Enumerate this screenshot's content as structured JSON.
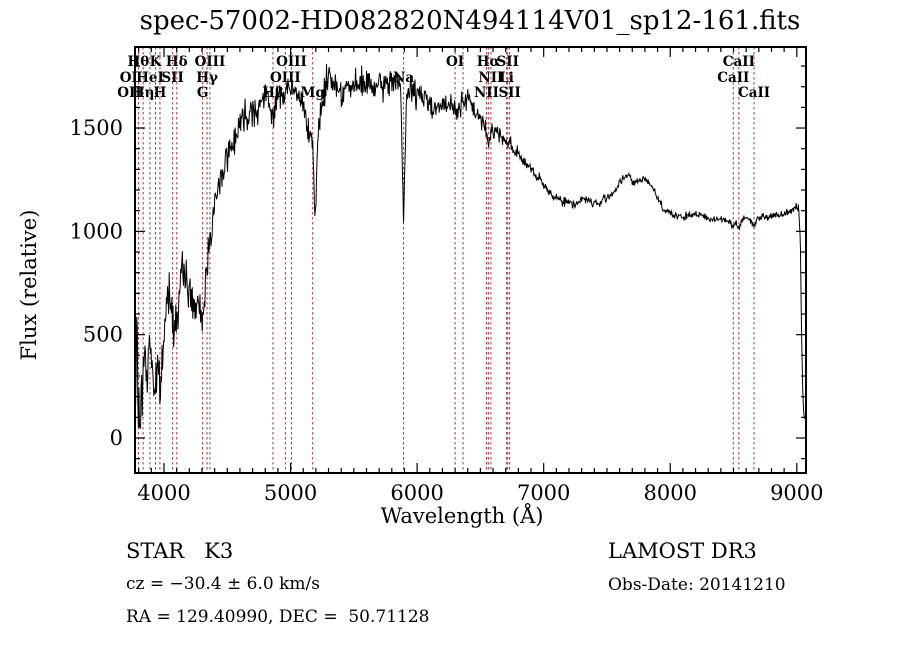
{
  "title": "spec-57002-HD082820N494114V01_sp12-161.fits",
  "annotations": {
    "object_class": "STAR   K3",
    "survey_release": "LAMOST DR3",
    "radial_velocity": "cz = −30.4 ± 6.0 km/s",
    "obs_date": "Obs-Date: 20141210",
    "coordinates": "RA = 129.40990, DEC =  50.71128"
  },
  "chart_data": {
    "type": "line",
    "title": "spec-57002-HD082820N494114V01_sp12-161.fits",
    "xlabel": "Wavelength (Å)",
    "ylabel": "Flux (relative)",
    "xlim": [
      3771,
      9075
    ],
    "ylim": [
      -169,
      1892
    ],
    "x_major_ticks": [
      4000,
      5000,
      6000,
      7000,
      8000,
      9000
    ],
    "x_minor_step": 100,
    "y_major_ticks": [
      0,
      500,
      1000,
      1500
    ],
    "y_minor_step": 100,
    "grid": false,
    "legend": false,
    "axis_color": "#000000",
    "spectrum_color": "#000000",
    "line_marker_color": "#a03939",
    "spectral_lines": [
      {
        "label": "Hθ",
        "wavelength": 3798,
        "row": 1
      },
      {
        "label": "K",
        "wavelength": 3933,
        "row": 1
      },
      {
        "label": "Hδ",
        "wavelength": 4101,
        "row": 1
      },
      {
        "label": "OIII",
        "wavelength": 4363,
        "row": 1
      },
      {
        "label": "OIII",
        "wavelength": 5007,
        "row": 1
      },
      {
        "label": "OI",
        "wavelength": 6300,
        "row": 1
      },
      {
        "label": "",
        "wavelength": 6363,
        "row": 1
      },
      {
        "label": "Hα",
        "wavelength": 6563,
        "row": 1
      },
      {
        "label": "SII",
        "wavelength": 6716,
        "row": 1
      },
      {
        "label": "CaII",
        "wavelength": 8542,
        "row": 1
      },
      {
        "label": "OI",
        "wavelength": 3722,
        "row": 2
      },
      {
        "label": "HeI",
        "wavelength": 3889,
        "row": 2
      },
      {
        "label": "SII",
        "wavelength": 4068,
        "row": 2
      },
      {
        "label": "Hγ",
        "wavelength": 4340,
        "row": 2
      },
      {
        "label": "OIII",
        "wavelength": 4959,
        "row": 2
      },
      {
        "label": "Na",
        "wavelength": 5893,
        "row": 2
      },
      {
        "label": "NII",
        "wavelength": 6583,
        "row": 2
      },
      {
        "label": "Li",
        "wavelength": 6707,
        "row": 2
      },
      {
        "label": "CaII",
        "wavelength": 8498,
        "row": 2
      },
      {
        "label": "OII",
        "wavelength": 3727,
        "row": 3
      },
      {
        "label": "Hη",
        "wavelength": 3835,
        "row": 3
      },
      {
        "label": "H",
        "wavelength": 3968,
        "row": 3
      },
      {
        "label": "G",
        "wavelength": 4305,
        "row": 3
      },
      {
        "label": "Hβ",
        "wavelength": 4861,
        "row": 3
      },
      {
        "label": "Mg",
        "wavelength": 5175,
        "row": 3
      },
      {
        "label": "NII",
        "wavelength": 6548,
        "row": 3
      },
      {
        "label": "SII",
        "wavelength": 6731,
        "row": 3
      },
      {
        "label": "CaII",
        "wavelength": 8662,
        "row": 3
      }
    ],
    "series": [
      {
        "name": "spectrum",
        "description": "LAMOST stellar spectrum, flux (relative) vs wavelength (Å); jagged noisy trace approximated by envelope anchor points plus per-segment noise amplitude",
        "envelope_points": [
          [
            3771,
            80
          ],
          [
            3780,
            250
          ],
          [
            3787,
            720
          ],
          [
            3792,
            200
          ],
          [
            3800,
            120
          ],
          [
            3810,
            90
          ],
          [
            3820,
            150
          ],
          [
            3832,
            280
          ],
          [
            3845,
            430
          ],
          [
            3855,
            380
          ],
          [
            3865,
            300
          ],
          [
            3875,
            350
          ],
          [
            3888,
            520
          ],
          [
            3900,
            400
          ],
          [
            3915,
            280
          ],
          [
            3933,
            220
          ],
          [
            3948,
            330
          ],
          [
            3968,
            240
          ],
          [
            3985,
            350
          ],
          [
            4000,
            480
          ],
          [
            4020,
            640
          ],
          [
            4040,
            740
          ],
          [
            4060,
            640
          ],
          [
            4080,
            580
          ],
          [
            4101,
            560
          ],
          [
            4120,
            680
          ],
          [
            4140,
            780
          ],
          [
            4160,
            820
          ],
          [
            4180,
            760
          ],
          [
            4200,
            700
          ],
          [
            4220,
            660
          ],
          [
            4240,
            640
          ],
          [
            4260,
            620
          ],
          [
            4280,
            610
          ],
          [
            4305,
            570
          ],
          [
            4320,
            700
          ],
          [
            4340,
            830
          ],
          [
            4360,
            980
          ],
          [
            4380,
            1060
          ],
          [
            4400,
            1120
          ],
          [
            4430,
            1200
          ],
          [
            4460,
            1290
          ],
          [
            4490,
            1360
          ],
          [
            4520,
            1390
          ],
          [
            4550,
            1440
          ],
          [
            4580,
            1500
          ],
          [
            4610,
            1540
          ],
          [
            4640,
            1560
          ],
          [
            4670,
            1580
          ],
          [
            4700,
            1600
          ],
          [
            4730,
            1590
          ],
          [
            4760,
            1620
          ],
          [
            4790,
            1640
          ],
          [
            4820,
            1650
          ],
          [
            4861,
            1560
          ],
          [
            4900,
            1650
          ],
          [
            4940,
            1670
          ],
          [
            4980,
            1690
          ],
          [
            5020,
            1680
          ],
          [
            5060,
            1650
          ],
          [
            5100,
            1620
          ],
          [
            5140,
            1520
          ],
          [
            5175,
            1380
          ],
          [
            5195,
            1020
          ],
          [
            5215,
            1450
          ],
          [
            5240,
            1600
          ],
          [
            5270,
            1680
          ],
          [
            5300,
            1760
          ],
          [
            5330,
            1740
          ],
          [
            5360,
            1700
          ],
          [
            5400,
            1680
          ],
          [
            5440,
            1700
          ],
          [
            5480,
            1690
          ],
          [
            5520,
            1700
          ],
          [
            5560,
            1710
          ],
          [
            5600,
            1720
          ],
          [
            5640,
            1700
          ],
          [
            5680,
            1690
          ],
          [
            5720,
            1700
          ],
          [
            5760,
            1710
          ],
          [
            5800,
            1730
          ],
          [
            5840,
            1750
          ],
          [
            5870,
            1700
          ],
          [
            5893,
            1000
          ],
          [
            5915,
            1650
          ],
          [
            5950,
            1690
          ],
          [
            5990,
            1670
          ],
          [
            6030,
            1650
          ],
          [
            6070,
            1640
          ],
          [
            6110,
            1620
          ],
          [
            6150,
            1600
          ],
          [
            6190,
            1610
          ],
          [
            6230,
            1600
          ],
          [
            6270,
            1610
          ],
          [
            6300,
            1590
          ],
          [
            6340,
            1610
          ],
          [
            6380,
            1630
          ],
          [
            6420,
            1620
          ],
          [
            6460,
            1580
          ],
          [
            6500,
            1540
          ],
          [
            6540,
            1500
          ],
          [
            6563,
            1420
          ],
          [
            6590,
            1500
          ],
          [
            6630,
            1480
          ],
          [
            6670,
            1460
          ],
          [
            6710,
            1440
          ],
          [
            6750,
            1410
          ],
          [
            6790,
            1380
          ],
          [
            6830,
            1350
          ],
          [
            6870,
            1320
          ],
          [
            6910,
            1290
          ],
          [
            6950,
            1260
          ],
          [
            6990,
            1230
          ],
          [
            7030,
            1200
          ],
          [
            7070,
            1180
          ],
          [
            7110,
            1160
          ],
          [
            7150,
            1150
          ],
          [
            7190,
            1140
          ],
          [
            7230,
            1130
          ],
          [
            7270,
            1140
          ],
          [
            7310,
            1160
          ],
          [
            7350,
            1150
          ],
          [
            7390,
            1140
          ],
          [
            7430,
            1130
          ],
          [
            7470,
            1150
          ],
          [
            7510,
            1170
          ],
          [
            7550,
            1190
          ],
          [
            7590,
            1220
          ],
          [
            7630,
            1260
          ],
          [
            7670,
            1270
          ],
          [
            7700,
            1240
          ],
          [
            7730,
            1230
          ],
          [
            7760,
            1250
          ],
          [
            7790,
            1255
          ],
          [
            7820,
            1240
          ],
          [
            7850,
            1230
          ],
          [
            7880,
            1190
          ],
          [
            7910,
            1150
          ],
          [
            7940,
            1120
          ],
          [
            7970,
            1100
          ],
          [
            8000,
            1090
          ],
          [
            8040,
            1075
          ],
          [
            8080,
            1065
          ],
          [
            8120,
            1070
          ],
          [
            8160,
            1080
          ],
          [
            8200,
            1085
          ],
          [
            8240,
            1080
          ],
          [
            8280,
            1065
          ],
          [
            8320,
            1055
          ],
          [
            8360,
            1060
          ],
          [
            8400,
            1065
          ],
          [
            8440,
            1055
          ],
          [
            8480,
            1040
          ],
          [
            8498,
            1020
          ],
          [
            8520,
            1050
          ],
          [
            8542,
            1015
          ],
          [
            8570,
            1055
          ],
          [
            8610,
            1065
          ],
          [
            8640,
            1050
          ],
          [
            8662,
            1020
          ],
          [
            8690,
            1065
          ],
          [
            8730,
            1075
          ],
          [
            8770,
            1070
          ],
          [
            8810,
            1075
          ],
          [
            8850,
            1080
          ],
          [
            8890,
            1085
          ],
          [
            8930,
            1095
          ],
          [
            8970,
            1110
          ],
          [
            9000,
            1120
          ],
          [
            9015,
            1110
          ],
          [
            9030,
            900
          ],
          [
            9040,
            400
          ],
          [
            9052,
            150
          ],
          [
            9065,
            60
          ]
        ],
        "noise_segments": [
          [
            3771,
            3900,
            140
          ],
          [
            3900,
            4100,
            115
          ],
          [
            4100,
            4400,
            95
          ],
          [
            4400,
            4750,
            85
          ],
          [
            4750,
            5150,
            70
          ],
          [
            5150,
            5520,
            75
          ],
          [
            5520,
            6000,
            70
          ],
          [
            6000,
            6450,
            60
          ],
          [
            6450,
            6800,
            42
          ],
          [
            6800,
            7200,
            28
          ],
          [
            7200,
            7700,
            22
          ],
          [
            7700,
            8200,
            20
          ],
          [
            8200,
            9005,
            17
          ],
          [
            9005,
            9065,
            35
          ]
        ]
      }
    ]
  }
}
